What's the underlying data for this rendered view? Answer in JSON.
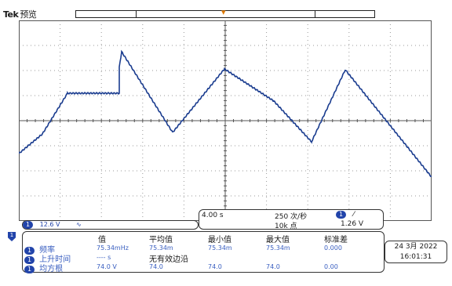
{
  "header": {
    "brand": "Tek",
    "mode": "预览"
  },
  "colors": {
    "trace": "#1a3c8f",
    "trigger": "#e07a00",
    "accent": "#2244aa"
  },
  "waveform": {
    "points": [
      [
        0,
        0.3
      ],
      [
        0.1,
        0.56
      ],
      [
        0.13,
        0.64
      ],
      [
        0.25,
        0.64
      ],
      [
        0.25,
        0.83
      ],
      [
        0.38,
        0.52
      ],
      [
        0.49,
        0.32
      ],
      [
        0.62,
        0.72
      ],
      [
        0.72,
        0.61
      ],
      [
        0.75,
        0.57
      ],
      [
        0.81,
        0.47
      ],
      [
        0.89,
        0.23
      ],
      [
        1.0,
        0.56
      ],
      [
        1.0,
        0.23
      ]
    ]
  },
  "channel": {
    "badge": "1",
    "volts": "12.6 V",
    "coupling_icon": "ac-coupling-icon",
    "coupling_glyph": "∿"
  },
  "horizontal": {
    "time_div": "4.00 s",
    "rate": "250 次/秒",
    "points": "10k 点",
    "trig_badge": "1",
    "trig_slope": "⁄",
    "trig_level": "1.26 V"
  },
  "measurements": {
    "headers": [
      "值",
      "平均值",
      "最小值",
      "最大值",
      "标准差"
    ],
    "rows": [
      {
        "badge": "1",
        "name": "频率",
        "value": "75.34mHz",
        "mean": "75.34m",
        "min": "75.34m",
        "max": "75.34m",
        "std": "0.000"
      },
      {
        "badge": "1",
        "name": "上升时间",
        "value": "---- s",
        "note": "无有效边沿"
      },
      {
        "badge": "1",
        "name": "均方根",
        "value": "74.0 V",
        "mean": "74.0",
        "min": "74.0",
        "max": "74.0",
        "std": "0.00"
      }
    ]
  },
  "datetime": {
    "date": "24 3月 2022",
    "time": "16:01:31"
  },
  "marker": {
    "label": "1"
  }
}
